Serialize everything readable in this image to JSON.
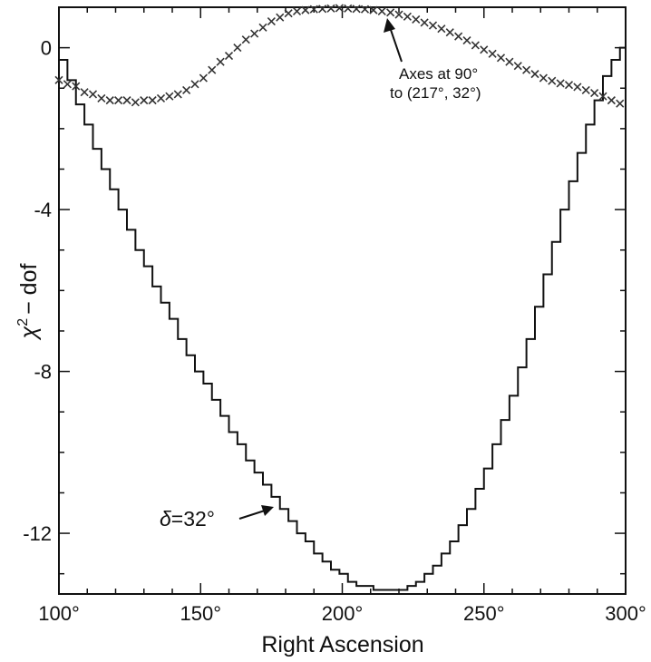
{
  "chart_data": {
    "type": "line",
    "xlabel": "Right Ascension",
    "ylabel_symbol": "χ",
    "ylabel_sup": "2",
    "ylabel_rest": "− dof",
    "xlim": [
      100,
      300
    ],
    "ylim": [
      -13.5,
      1.0
    ],
    "x_ticks": [
      {
        "value": 100,
        "label": "100°"
      },
      {
        "value": 150,
        "label": "150°"
      },
      {
        "value": 200,
        "label": "200°"
      },
      {
        "value": 250,
        "label": "250°"
      },
      {
        "value": 300,
        "label": "300°"
      }
    ],
    "y_ticks": [
      {
        "value": 0,
        "label": "0"
      },
      {
        "value": -4,
        "label": "-4"
      },
      {
        "value": -8,
        "label": "-8"
      },
      {
        "value": -12,
        "label": "-12"
      }
    ],
    "grid": false,
    "series": [
      {
        "style": "step",
        "color": "#111111",
        "annotation": {
          "symbol": "δ",
          "text": "=32°"
        },
        "x": [
          100,
          103,
          106,
          109,
          112,
          115,
          118,
          121,
          124,
          127,
          130,
          133,
          136,
          139,
          142,
          145,
          148,
          151,
          154,
          157,
          160,
          163,
          166,
          169,
          172,
          175,
          178,
          181,
          184,
          187,
          190,
          193,
          196,
          199,
          202,
          205,
          208,
          211,
          214,
          217,
          220,
          223,
          226,
          229,
          232,
          235,
          238,
          241,
          244,
          247,
          250,
          253,
          256,
          259,
          262,
          265,
          268,
          271,
          274,
          277,
          280,
          283,
          286,
          289,
          292,
          295,
          298,
          300
        ],
        "y": [
          -0.3,
          -0.8,
          -1.4,
          -1.9,
          -2.5,
          -3.0,
          -3.5,
          -4.0,
          -4.5,
          -5.0,
          -5.4,
          -5.9,
          -6.3,
          -6.7,
          -7.2,
          -7.6,
          -8.0,
          -8.3,
          -8.7,
          -9.1,
          -9.5,
          -9.8,
          -10.2,
          -10.5,
          -10.8,
          -11.1,
          -11.4,
          -11.7,
          -12.0,
          -12.2,
          -12.5,
          -12.7,
          -12.9,
          -13.0,
          -13.2,
          -13.3,
          -13.3,
          -13.4,
          -13.4,
          -13.4,
          -13.4,
          -13.3,
          -13.2,
          -13.0,
          -12.8,
          -12.5,
          -12.2,
          -11.8,
          -11.4,
          -10.9,
          -10.4,
          -9.8,
          -9.2,
          -8.6,
          -7.9,
          -7.2,
          -6.4,
          -5.6,
          -4.8,
          -4.0,
          -3.3,
          -2.6,
          -1.9,
          -1.3,
          -0.7,
          -0.3,
          0.0,
          -0.3
        ]
      },
      {
        "style": "markers",
        "marker": "×",
        "color": "#333333",
        "annotation": {
          "line1": "Axes at 90°",
          "line2": "to (217°, 32°)"
        },
        "x": [
          100,
          103,
          106,
          109,
          112,
          115,
          118,
          121,
          124,
          127,
          130,
          133,
          136,
          139,
          142,
          145,
          148,
          151,
          154,
          157,
          160,
          163,
          166,
          169,
          172,
          175,
          178,
          181,
          184,
          187,
          190,
          193,
          196,
          199,
          202,
          205,
          208,
          211,
          214,
          217,
          220,
          223,
          226,
          229,
          232,
          235,
          238,
          241,
          244,
          247,
          250,
          253,
          256,
          259,
          262,
          265,
          268,
          271,
          274,
          277,
          280,
          283,
          286,
          289,
          292,
          295,
          298
        ],
        "y": [
          -0.8,
          -0.9,
          -0.95,
          -1.1,
          -1.15,
          -1.25,
          -1.3,
          -1.3,
          -1.3,
          -1.35,
          -1.3,
          -1.3,
          -1.25,
          -1.2,
          -1.15,
          -1.05,
          -0.9,
          -0.75,
          -0.55,
          -0.35,
          -0.2,
          0.0,
          0.2,
          0.35,
          0.5,
          0.65,
          0.75,
          0.85,
          0.9,
          0.93,
          0.95,
          0.96,
          0.97,
          0.98,
          0.97,
          0.96,
          0.95,
          0.93,
          0.9,
          0.87,
          0.82,
          0.77,
          0.7,
          0.62,
          0.55,
          0.47,
          0.38,
          0.28,
          0.18,
          0.06,
          -0.05,
          -0.15,
          -0.25,
          -0.35,
          -0.45,
          -0.55,
          -0.65,
          -0.75,
          -0.82,
          -0.88,
          -0.92,
          -0.97,
          -1.05,
          -1.12,
          -1.2,
          -1.3,
          -1.38
        ]
      }
    ]
  }
}
